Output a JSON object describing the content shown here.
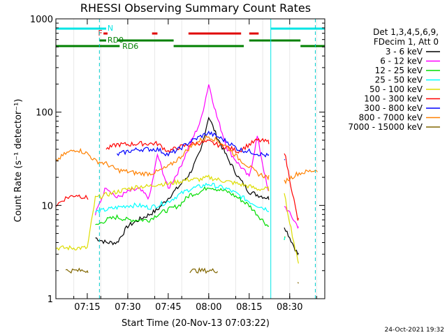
{
  "chart_data": {
    "type": "line",
    "title": "RHESSI Observing Summary Count Rates",
    "xlabel": "Start Time (20-Nov-13 07:03:22)",
    "ylabel": "Count Rate (s⁻¹ detector⁻¹)",
    "ylog": true,
    "ylim": [
      1,
      1000
    ],
    "xlim": [
      "07:03:22",
      "08:43:00"
    ],
    "x_ticks": [
      "07:15",
      "07:30",
      "07:45",
      "08:00",
      "08:15",
      "08:30"
    ],
    "y_ticks": [
      "1",
      "10",
      "100",
      "1000"
    ],
    "legend_header": [
      "Det 1,3,4,5,6,9,",
      "FDecim 1, Att 0"
    ],
    "legend_placement": "right",
    "timestamp": "24-Oct-2021 19:32",
    "flags": {
      "night": {
        "label": "N",
        "color": "#00e5e5",
        "segments": [
          [
            "07:03:22",
            "07:22:00"
          ],
          [
            "08:23:00",
            "08:43:00"
          ]
        ]
      },
      "flare": {
        "label": "F",
        "color": "#e00000",
        "segments": [
          [
            "07:21:00",
            "07:22:30"
          ],
          [
            "07:39:00",
            "07:41:00"
          ],
          [
            "07:52:30",
            "08:12:00"
          ],
          [
            "08:15:00",
            "08:18:30"
          ]
        ]
      },
      "rd0": {
        "label": "RD0",
        "color": "#008000",
        "segments": [
          [
            "07:19:30",
            "07:22:00"
          ],
          [
            "07:26:00",
            "07:47:00"
          ],
          [
            "08:15:00",
            "08:34:00"
          ]
        ]
      },
      "rd6": {
        "label": "RD6",
        "color": "#008000",
        "segments": [
          [
            "07:03:22",
            "07:27:00"
          ],
          [
            "07:47:00",
            "08:13:00"
          ],
          [
            "08:34:00",
            "08:43:00"
          ]
        ]
      }
    },
    "vlines": [
      {
        "time": "07:19:30",
        "style": "dashed",
        "color": "#00cccc"
      },
      {
        "time": "08:23:00",
        "style": "solid",
        "color": "#00e5e5"
      },
      {
        "time": "08:39:30",
        "style": "dashed",
        "color": "#00cccc"
      }
    ],
    "time_grid": [
      "07:10",
      "07:20",
      "07:30",
      "07:40",
      "07:50",
      "08:00",
      "08:10",
      "08:20",
      "08:30",
      "08:40"
    ],
    "series": [
      {
        "name": "3 - 6 keV",
        "color": "#000000",
        "values": [
          null,
          null,
          null,
          null,
          4.5,
          4,
          4,
          6,
          7,
          8,
          9,
          12,
          16,
          22,
          38,
          90,
          55,
          32,
          20,
          14,
          13,
          12,
          null,
          6,
          3,
          null
        ]
      },
      {
        "name": "6 - 12 keV",
        "color": "#ff00ff",
        "values": [
          null,
          null,
          null,
          null,
          8,
          16,
          12,
          14,
          15,
          12,
          35,
          15,
          24,
          45,
          80,
          200,
          90,
          40,
          28,
          20,
          55,
          14,
          null,
          10,
          6,
          null
        ]
      },
      {
        "name": "12 - 25 keV",
        "color": "#00dd00",
        "values": [
          null,
          null,
          null,
          null,
          6,
          7,
          7.5,
          7,
          7,
          7,
          8,
          9,
          10,
          13,
          14,
          16,
          15,
          14,
          12,
          10,
          8,
          6,
          null,
          4.5,
          null,
          null
        ]
      },
      {
        "name": "25 - 50 keV",
        "color": "#00ffff",
        "values": [
          null,
          null,
          null,
          null,
          8.5,
          9,
          9.5,
          10,
          10,
          9.5,
          10,
          11,
          13,
          15,
          16,
          17,
          16,
          15,
          13,
          11,
          10,
          9,
          null,
          4.5,
          null,
          null
        ]
      },
      {
        "name": "50 - 100 keV",
        "color": "#dddd00",
        "values": [
          3.5,
          3.5,
          3.5,
          3.5,
          12,
          13,
          14,
          15,
          16,
          16,
          17,
          17,
          18,
          19,
          19,
          20,
          19,
          18,
          17,
          16,
          15,
          15,
          null,
          13,
          2.5,
          null
        ]
      },
      {
        "name": "100 - 300 keV",
        "color": "#ff0000",
        "values": [
          10,
          12,
          13,
          12,
          null,
          40,
          45,
          45,
          46,
          46,
          46,
          38,
          42,
          45,
          47,
          48,
          45,
          42,
          38,
          45,
          50,
          48,
          null,
          38,
          7,
          null
        ]
      },
      {
        "name": "300 - 800 keV",
        "color": "#0000ff",
        "values": [
          null,
          null,
          null,
          null,
          null,
          null,
          35,
          38,
          40,
          40,
          40,
          35,
          40,
          48,
          55,
          60,
          55,
          48,
          40,
          38,
          36,
          34,
          null,
          30,
          null,
          null
        ]
      },
      {
        "name": "800 - 7000 keV",
        "color": "#ff8000",
        "values": [
          30,
          36,
          40,
          36,
          30,
          28,
          24,
          23,
          22,
          22,
          23,
          26,
          32,
          42,
          50,
          55,
          50,
          42,
          32,
          26,
          22,
          20,
          null,
          18,
          22,
          24
        ]
      },
      {
        "name": "7000 - 15000 keV",
        "color": "#806600",
        "values": [
          null,
          2,
          2,
          2,
          null,
          null,
          null,
          null,
          null,
          null,
          null,
          null,
          null,
          2,
          2,
          2,
          2,
          null,
          null,
          null,
          null,
          null,
          null,
          null,
          1.5,
          null
        ]
      }
    ],
    "series_times": [
      "07:03:22",
      "07:07",
      "07:11",
      "07:15",
      "07:18",
      "07:22",
      "07:26",
      "07:30",
      "07:34",
      "07:38",
      "07:41",
      "07:45",
      "07:49",
      "07:53",
      "07:57",
      "08:00",
      "08:03",
      "08:07",
      "08:11",
      "08:15",
      "08:18",
      "08:22",
      "08:24",
      "08:28",
      "08:33",
      "08:40"
    ]
  }
}
